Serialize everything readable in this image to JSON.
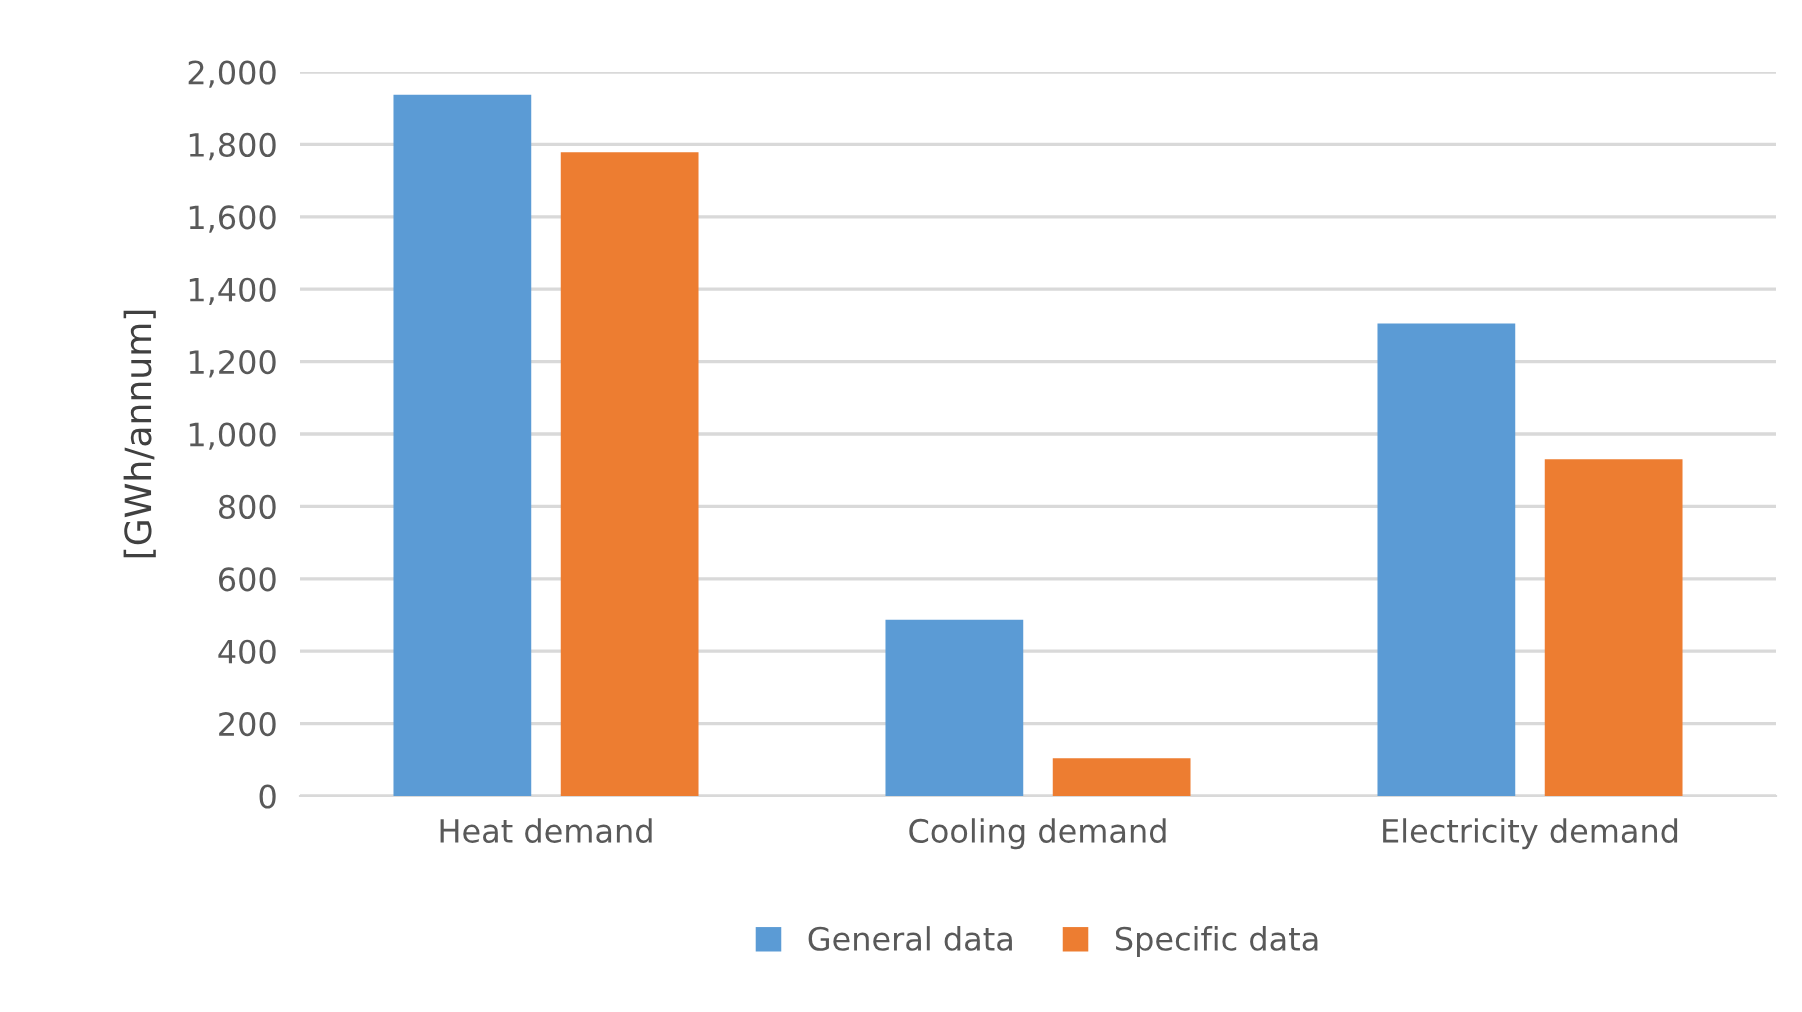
{
  "chart_data": {
    "type": "bar",
    "ylabel": "[GWh/annum]",
    "categories": [
      "Heat demand",
      "Cooling demand",
      "Electricity demand"
    ],
    "series": [
      {
        "name": "General data",
        "color": "#5b9bd5",
        "values": [
          1937,
          487,
          1305
        ]
      },
      {
        "name": "Specific data",
        "color": "#ed7d31",
        "values": [
          1778,
          104,
          930
        ]
      }
    ],
    "ylim": [
      0,
      2000
    ],
    "yticks": [
      {
        "value": 0,
        "label": "0"
      },
      {
        "value": 200,
        "label": "200"
      },
      {
        "value": 400,
        "label": "400"
      },
      {
        "value": 600,
        "label": "600"
      },
      {
        "value": 800,
        "label": "800"
      },
      {
        "value": 1000,
        "label": "1,000"
      },
      {
        "value": 1200,
        "label": "1,200"
      },
      {
        "value": 1400,
        "label": "1,400"
      },
      {
        "value": 1600,
        "label": "1,600"
      },
      {
        "value": 1800,
        "label": "1,800"
      },
      {
        "value": 2000,
        "label": "2,000"
      }
    ],
    "grid": "y",
    "legend": "bottom"
  }
}
